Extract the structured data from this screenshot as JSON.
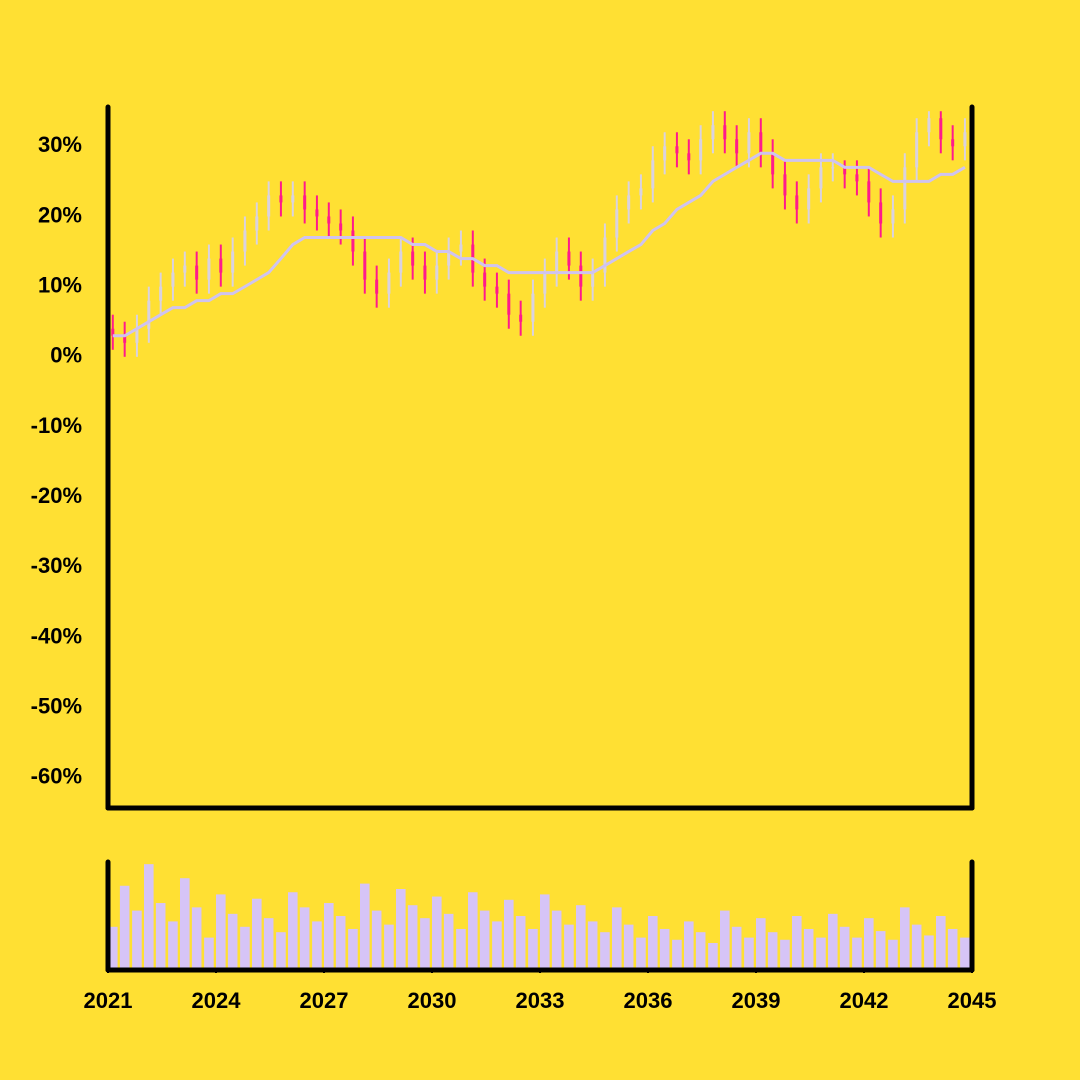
{
  "chart_data": {
    "type": "ohlc",
    "x": [
      2021,
      2021.33,
      2021.67,
      2022,
      2022.33,
      2022.67,
      2023,
      2023.33,
      2023.67,
      2024,
      2024.33,
      2024.67,
      2025,
      2025.33,
      2025.67,
      2026,
      2026.33,
      2026.67,
      2027,
      2027.33,
      2027.67,
      2028,
      2028.33,
      2028.67,
      2029,
      2029.33,
      2029.67,
      2030,
      2030.33,
      2030.67,
      2031,
      2031.33,
      2031.67,
      2032,
      2032.33,
      2032.67,
      2033,
      2033.33,
      2033.67,
      2034,
      2034.33,
      2034.67,
      2035,
      2035.33,
      2035.67,
      2036,
      2036.33,
      2036.67,
      2037,
      2037.33,
      2037.67,
      2038,
      2038.33,
      2038.67,
      2039,
      2039.33,
      2039.67,
      2040,
      2040.33,
      2040.67,
      2041,
      2041.33,
      2041.67,
      2042,
      2042.33,
      2042.67,
      2043,
      2043.33,
      2043.67,
      2044,
      2044.33,
      2044.67
    ],
    "open": [
      4,
      3,
      2,
      4,
      8,
      10,
      12,
      13,
      11,
      14,
      12,
      15,
      18,
      20,
      23,
      22,
      23,
      21,
      20,
      19,
      18,
      15,
      11,
      9,
      12,
      15,
      13,
      11,
      13,
      15,
      16,
      12,
      10,
      9,
      6,
      5,
      9,
      12,
      15,
      13,
      10,
      12,
      17,
      21,
      23,
      24,
      28,
      30,
      29,
      28,
      31,
      33,
      31,
      29,
      32,
      29,
      26,
      23,
      21,
      24,
      27,
      27,
      26,
      25,
      22,
      19,
      21,
      27,
      32,
      34,
      31,
      30
    ],
    "high": [
      6,
      5,
      6,
      10,
      12,
      14,
      15,
      15,
      16,
      16,
      17,
      20,
      22,
      25,
      25,
      25,
      25,
      23,
      22,
      21,
      20,
      17,
      13,
      14,
      17,
      17,
      15,
      15,
      17,
      18,
      18,
      14,
      12,
      11,
      8,
      11,
      14,
      17,
      17,
      15,
      14,
      19,
      23,
      25,
      26,
      30,
      32,
      32,
      31,
      33,
      35,
      35,
      33,
      34,
      34,
      31,
      28,
      25,
      26,
      29,
      29,
      28,
      28,
      27,
      24,
      23,
      29,
      34,
      35,
      35,
      33,
      34
    ],
    "low": [
      1,
      0,
      0,
      2,
      6,
      8,
      10,
      9,
      9,
      10,
      10,
      13,
      16,
      18,
      20,
      20,
      19,
      18,
      17,
      16,
      13,
      9,
      7,
      7,
      10,
      11,
      9,
      9,
      11,
      13,
      10,
      8,
      7,
      4,
      3,
      3,
      7,
      10,
      11,
      8,
      8,
      10,
      15,
      19,
      21,
      22,
      26,
      27,
      26,
      26,
      29,
      29,
      27,
      27,
      27,
      24,
      21,
      19,
      19,
      22,
      25,
      24,
      23,
      20,
      17,
      17,
      19,
      25,
      30,
      29,
      28,
      28
    ],
    "close": [
      3,
      2,
      4,
      8,
      10,
      12,
      13,
      11,
      14,
      12,
      15,
      18,
      20,
      23,
      22,
      23,
      21,
      20,
      19,
      18,
      15,
      11,
      9,
      12,
      15,
      13,
      11,
      13,
      15,
      16,
      12,
      10,
      9,
      6,
      5,
      9,
      12,
      15,
      13,
      10,
      12,
      17,
      21,
      23,
      24,
      28,
      30,
      29,
      28,
      31,
      33,
      31,
      29,
      32,
      29,
      26,
      23,
      21,
      24,
      27,
      27,
      26,
      25,
      22,
      19,
      21,
      27,
      32,
      34,
      31,
      30,
      32
    ],
    "up_color": "#d9d2e0",
    "down_color": "#ff1a8c",
    "ma_values": [
      3,
      3,
      4,
      5,
      6,
      7,
      7,
      8,
      8,
      9,
      9,
      10,
      11,
      12,
      14,
      16,
      17,
      17,
      17,
      17,
      17,
      17,
      17,
      17,
      17,
      16,
      16,
      15,
      15,
      14,
      14,
      13,
      13,
      12,
      12,
      12,
      12,
      12,
      12,
      12,
      12,
      13,
      14,
      15,
      16,
      18,
      19,
      21,
      22,
      23,
      25,
      26,
      27,
      28,
      29,
      29,
      28,
      28,
      28,
      28,
      28,
      27,
      27,
      27,
      26,
      25,
      25,
      25,
      25,
      26,
      26,
      27
    ],
    "ma_color": "#cfc3f0",
    "volume": [
      40,
      78,
      55,
      98,
      62,
      45,
      85,
      58,
      30,
      70,
      52,
      40,
      66,
      48,
      35,
      72,
      58,
      45,
      62,
      50,
      38,
      80,
      55,
      42,
      75,
      60,
      48,
      68,
      52,
      38,
      72,
      55,
      45,
      65,
      50,
      38,
      70,
      55,
      42,
      60,
      45,
      35,
      58,
      42,
      30,
      50,
      38,
      28,
      45,
      35,
      25,
      55,
      40,
      30,
      48,
      35,
      28,
      50,
      38,
      30,
      52,
      40,
      30,
      48,
      36,
      28,
      58,
      42,
      32,
      50,
      38,
      30
    ],
    "volume_color": "#d6c4f7",
    "volume_ylim": [
      0,
      100
    ],
    "xlim": [
      2021,
      2045
    ],
    "xticks": [
      2021,
      2024,
      2027,
      2030,
      2033,
      2036,
      2039,
      2042,
      2045
    ],
    "ylim": [
      -64.3,
      35.6
    ],
    "yticks": [
      {
        "value": -60,
        "label": "-60%"
      },
      {
        "value": -50,
        "label": "-50%"
      },
      {
        "value": -40,
        "label": "-40%"
      },
      {
        "value": -30,
        "label": "-30%"
      },
      {
        "value": -20,
        "label": "-20%"
      },
      {
        "value": -10,
        "label": "-10%"
      },
      {
        "value": 0,
        "label": "0%"
      },
      {
        "value": 10,
        "label": "10%"
      },
      {
        "value": 20,
        "label": "20%"
      },
      {
        "value": 30,
        "label": "30%"
      }
    ]
  }
}
